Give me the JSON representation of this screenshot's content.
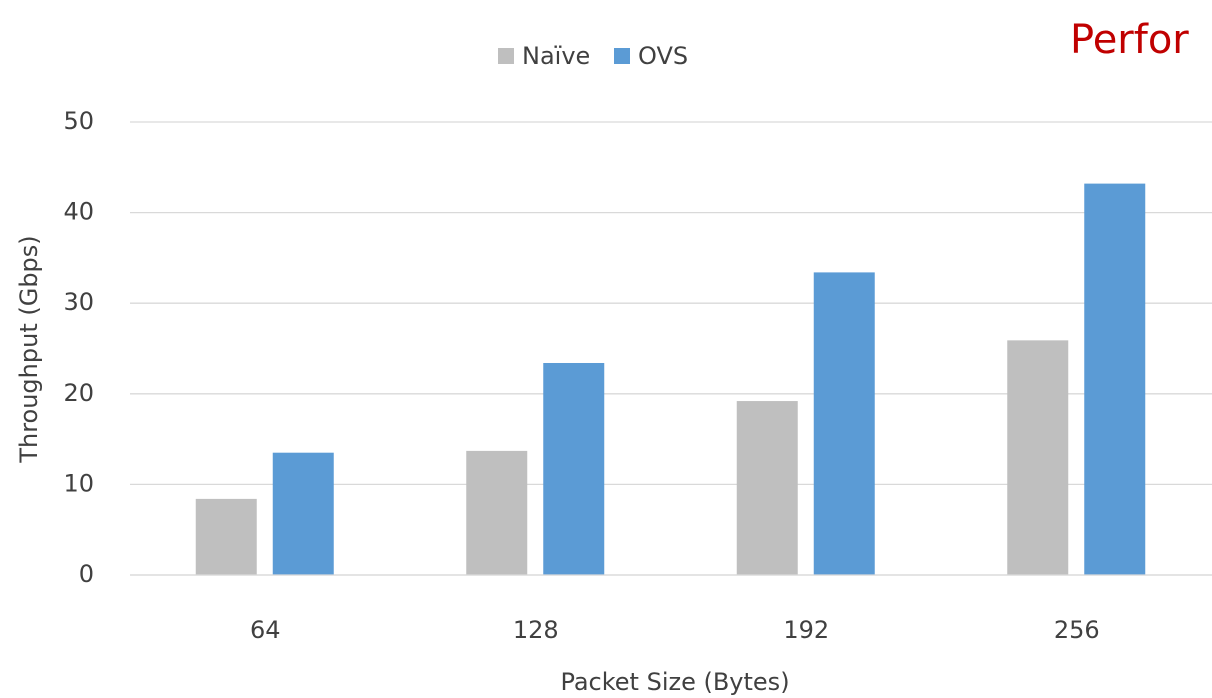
{
  "chart_data": {
    "type": "bar",
    "annotation": "Perfor",
    "x_label": "Packet Size (Bytes)",
    "y_label": "Throughput (Gbps)",
    "categories": [
      "64",
      "128",
      "192",
      "256"
    ],
    "series": [
      {
        "name": "Naïve",
        "color": "#bfbfbf",
        "values": [
          8.4,
          13.7,
          19.2,
          25.9
        ]
      },
      {
        "name": "OVS",
        "color": "#5b9bd5",
        "values": [
          13.5,
          23.4,
          33.4,
          43.2
        ]
      }
    ],
    "ylim": [
      0,
      50
    ],
    "yticks": [
      0,
      10,
      20,
      30,
      40,
      50
    ],
    "grid": true,
    "legend": "top"
  }
}
